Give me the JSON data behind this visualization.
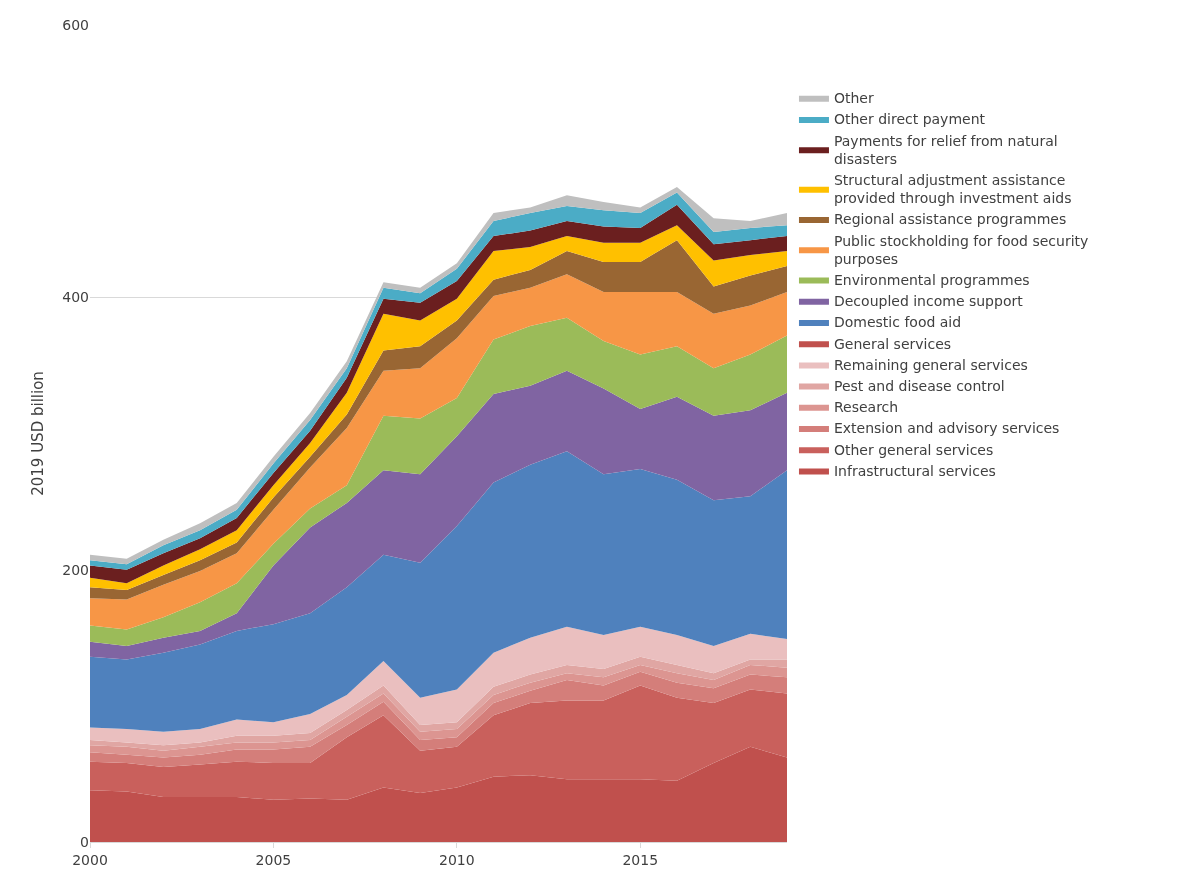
{
  "chart_data": {
    "type": "area",
    "stacked": true,
    "ylabel": "2019 USD billion",
    "x": [
      2000,
      2001,
      2002,
      2003,
      2004,
      2005,
      2006,
      2007,
      2008,
      2009,
      2010,
      2011,
      2012,
      2013,
      2014,
      2015,
      2016,
      2017,
      2018,
      2019
    ],
    "xlim": [
      2000,
      2019
    ],
    "xticks": [
      2000,
      2005,
      2010,
      2015
    ],
    "ylim": [
      0,
      600
    ],
    "yticks": [
      0,
      200,
      400,
      600
    ],
    "grid": "y",
    "legend": "right",
    "series": [
      {
        "name": "Infrastructural services",
        "color": "#c0504d",
        "values": [
          38,
          37,
          33,
          33,
          33,
          31,
          32,
          31,
          40,
          36,
          40,
          48,
          49,
          46,
          46,
          46,
          45,
          58,
          70,
          62
        ]
      },
      {
        "name": "Other general services",
        "color": "#c9605c",
        "values": [
          21,
          21,
          22,
          24,
          26,
          27,
          26,
          46,
          53,
          31,
          30,
          45,
          53,
          58,
          58,
          69,
          61,
          44,
          42,
          47
        ]
      },
      {
        "name": "Extension and advisory services",
        "color": "#d47e7a",
        "values": [
          7,
          6,
          7,
          7,
          9,
          10,
          12,
          9,
          10,
          8,
          7,
          9,
          9,
          15,
          11,
          10,
          11,
          11,
          11,
          12
        ]
      },
      {
        "name": "Research",
        "color": "#dc9591",
        "values": [
          5,
          6,
          5,
          6,
          5,
          5,
          5,
          6,
          6,
          6,
          6,
          6,
          6,
          5,
          6,
          5,
          7,
          6,
          7,
          7
        ]
      },
      {
        "name": "Pest and disease control",
        "color": "#e0a6a3",
        "values": [
          4,
          3,
          4,
          3,
          5,
          5,
          5,
          5,
          6,
          5,
          5,
          6,
          6,
          6,
          6,
          6,
          6,
          5,
          4,
          6
        ]
      },
      {
        "name": "Remaining general services",
        "color": "#eabfbf",
        "values": [
          9,
          10,
          10,
          10,
          12,
          10,
          14,
          11,
          18,
          20,
          24,
          25,
          27,
          28,
          25,
          22,
          22,
          20,
          19,
          15
        ]
      },
      {
        "name": "General services",
        "color": "#c0504d",
        "values": [
          null,
          null,
          null,
          null,
          null,
          null,
          null,
          null,
          null,
          null,
          null,
          null,
          null,
          null,
          null,
          null,
          null,
          null,
          null,
          null
        ]
      },
      {
        "name": "Domestic food aid",
        "color": "#4f81bd",
        "values": [
          52,
          51,
          58,
          62,
          65,
          72,
          74,
          79,
          78,
          99,
          120,
          125,
          127,
          129,
          118,
          116,
          114,
          107,
          101,
          124
        ]
      },
      {
        "name": "Decoupled income support",
        "color": "#8064a2",
        "values": [
          11,
          10,
          11,
          10,
          13,
          43,
          63,
          62,
          62,
          65,
          66,
          65,
          58,
          59,
          63,
          44,
          61,
          62,
          63,
          57
        ]
      },
      {
        "name": "Environmental programmes",
        "color": "#9bbb59",
        "values": [
          12,
          12,
          15,
          21,
          22,
          16,
          14,
          13,
          40,
          41,
          28,
          40,
          44,
          39,
          35,
          40,
          37,
          35,
          41,
          42
        ]
      },
      {
        "name": "Public stockholding for food security purposes",
        "color": "#f79646",
        "values": [
          20,
          22,
          24,
          23,
          22,
          25,
          30,
          42,
          33,
          37,
          44,
          32,
          28,
          32,
          36,
          46,
          40,
          40,
          36,
          32
        ]
      },
      {
        "name": "Regional assistance programmes",
        "color": "#996633",
        "values": [
          8,
          7,
          7,
          8,
          8,
          9,
          8,
          10,
          15,
          16,
          13,
          12,
          13,
          17,
          22,
          22,
          38,
          20,
          22,
          19
        ]
      },
      {
        "name": "Structural adjustment assistance provided through investment aids",
        "color": "#ffc000",
        "values": [
          7,
          5,
          7,
          8,
          9,
          9,
          10,
          16,
          27,
          19,
          16,
          21,
          17,
          11,
          14,
          14,
          11,
          19,
          15,
          11
        ]
      },
      {
        "name": "Payments for relief from natural disasters",
        "color": "#6b1f1f",
        "values": [
          9,
          10,
          9,
          8,
          9,
          9,
          9,
          11,
          11,
          13,
          13,
          11,
          12,
          11,
          12,
          11,
          15,
          12,
          11,
          11
        ]
      },
      {
        "name": "Other direct payment",
        "color": "#4bacc6",
        "values": [
          4,
          4,
          6,
          6,
          6,
          7,
          8,
          7,
          8,
          7,
          9,
          11,
          13,
          11,
          12,
          11,
          9,
          9,
          9,
          8
        ]
      },
      {
        "name": "Other",
        "color": "#bfbfbf",
        "values": [
          4,
          4,
          4,
          5,
          5,
          5,
          5,
          5,
          4,
          4,
          4,
          6,
          4,
          8,
          6,
          4,
          4,
          10,
          5,
          9
        ]
      }
    ]
  }
}
